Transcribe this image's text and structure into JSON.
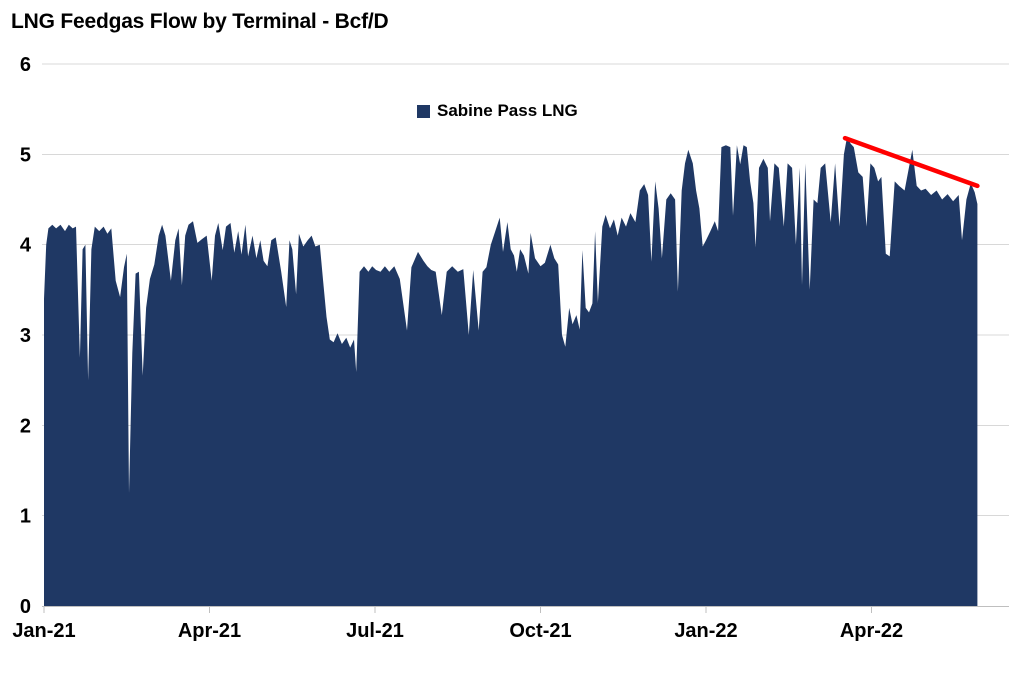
{
  "chart_data": {
    "type": "area",
    "title": "LNG Feedgas Flow by Terminal - Bcf/D",
    "value_unit": "Bcf/D",
    "x_unit": "months since Jan-2021",
    "x_ticks": [
      "Jan-21",
      "Apr-21",
      "Jul-21",
      "Oct-21",
      "Jan-22",
      "Apr-22"
    ],
    "x_tick_interval_months": 3,
    "xlim_months": [
      0,
      17.5
    ],
    "y_ticks": [
      0,
      1,
      2,
      3,
      4,
      5,
      6
    ],
    "ylim": [
      0,
      6
    ],
    "grid": true,
    "legend_position": "top-center",
    "colors": {
      "grid": "#d8d8d8",
      "axis": "#bfbfbf",
      "text": "#000000",
      "background": "#ffffff"
    },
    "series": [
      {
        "name": "Sabine Pass LNG",
        "color": "#1F3864",
        "points": [
          [
            0.0,
            3.4
          ],
          [
            0.04,
            4.0
          ],
          [
            0.08,
            4.18
          ],
          [
            0.15,
            4.22
          ],
          [
            0.22,
            4.18
          ],
          [
            0.3,
            4.22
          ],
          [
            0.38,
            4.15
          ],
          [
            0.45,
            4.22
          ],
          [
            0.52,
            4.18
          ],
          [
            0.58,
            4.2
          ],
          [
            0.65,
            2.75
          ],
          [
            0.7,
            3.95
          ],
          [
            0.75,
            4.0
          ],
          [
            0.8,
            2.5
          ],
          [
            0.86,
            3.95
          ],
          [
            0.92,
            4.2
          ],
          [
            1.0,
            4.15
          ],
          [
            1.08,
            4.2
          ],
          [
            1.15,
            4.12
          ],
          [
            1.22,
            4.18
          ],
          [
            1.3,
            3.6
          ],
          [
            1.38,
            3.42
          ],
          [
            1.45,
            3.75
          ],
          [
            1.5,
            3.9
          ],
          [
            1.54,
            1.25
          ],
          [
            1.6,
            2.8
          ],
          [
            1.66,
            3.68
          ],
          [
            1.72,
            3.7
          ],
          [
            1.79,
            2.55
          ],
          [
            1.85,
            3.3
          ],
          [
            1.92,
            3.62
          ],
          [
            2.0,
            3.78
          ],
          [
            2.08,
            4.1
          ],
          [
            2.14,
            4.22
          ],
          [
            2.2,
            4.1
          ],
          [
            2.3,
            3.6
          ],
          [
            2.38,
            4.05
          ],
          [
            2.44,
            4.18
          ],
          [
            2.5,
            3.55
          ],
          [
            2.56,
            4.1
          ],
          [
            2.62,
            4.22
          ],
          [
            2.7,
            4.26
          ],
          [
            2.78,
            4.02
          ],
          [
            2.86,
            4.06
          ],
          [
            2.95,
            4.1
          ],
          [
            3.04,
            3.6
          ],
          [
            3.1,
            4.1
          ],
          [
            3.16,
            4.24
          ],
          [
            3.24,
            3.94
          ],
          [
            3.3,
            4.2
          ],
          [
            3.38,
            4.24
          ],
          [
            3.45,
            3.91
          ],
          [
            3.52,
            4.15
          ],
          [
            3.58,
            3.89
          ],
          [
            3.65,
            4.22
          ],
          [
            3.7,
            3.87
          ],
          [
            3.78,
            4.1
          ],
          [
            3.85,
            3.85
          ],
          [
            3.92,
            4.05
          ],
          [
            3.98,
            3.82
          ],
          [
            4.05,
            3.76
          ],
          [
            4.12,
            4.05
          ],
          [
            4.2,
            4.08
          ],
          [
            4.3,
            3.7
          ],
          [
            4.39,
            3.31
          ],
          [
            4.45,
            4.05
          ],
          [
            4.5,
            3.95
          ],
          [
            4.57,
            3.45
          ],
          [
            4.62,
            4.12
          ],
          [
            4.7,
            3.98
          ],
          [
            4.78,
            4.05
          ],
          [
            4.85,
            4.1
          ],
          [
            4.92,
            3.98
          ],
          [
            5.0,
            4.0
          ],
          [
            5.06,
            3.6
          ],
          [
            5.12,
            3.2
          ],
          [
            5.18,
            2.95
          ],
          [
            5.25,
            2.92
          ],
          [
            5.32,
            3.02
          ],
          [
            5.4,
            2.9
          ],
          [
            5.48,
            2.97
          ],
          [
            5.55,
            2.86
          ],
          [
            5.62,
            2.95
          ],
          [
            5.66,
            2.59
          ],
          [
            5.72,
            3.7
          ],
          [
            5.8,
            3.76
          ],
          [
            5.88,
            3.7
          ],
          [
            5.95,
            3.76
          ],
          [
            6.02,
            3.72
          ],
          [
            6.1,
            3.7
          ],
          [
            6.18,
            3.76
          ],
          [
            6.26,
            3.7
          ],
          [
            6.35,
            3.76
          ],
          [
            6.45,
            3.62
          ],
          [
            6.58,
            3.05
          ],
          [
            6.66,
            3.75
          ],
          [
            6.78,
            3.92
          ],
          [
            6.88,
            3.82
          ],
          [
            6.95,
            3.76
          ],
          [
            7.02,
            3.72
          ],
          [
            7.1,
            3.7
          ],
          [
            7.21,
            3.22
          ],
          [
            7.3,
            3.7
          ],
          [
            7.4,
            3.76
          ],
          [
            7.5,
            3.7
          ],
          [
            7.6,
            3.73
          ],
          [
            7.7,
            3.0
          ],
          [
            7.78,
            3.72
          ],
          [
            7.88,
            3.05
          ],
          [
            7.95,
            3.7
          ],
          [
            8.02,
            3.75
          ],
          [
            8.1,
            4.0
          ],
          [
            8.18,
            4.15
          ],
          [
            8.26,
            4.3
          ],
          [
            8.32,
            3.92
          ],
          [
            8.4,
            4.25
          ],
          [
            8.46,
            3.95
          ],
          [
            8.52,
            3.88
          ],
          [
            8.57,
            3.7
          ],
          [
            8.63,
            3.95
          ],
          [
            8.7,
            3.88
          ],
          [
            8.78,
            3.68
          ],
          [
            8.82,
            4.13
          ],
          [
            8.9,
            3.85
          ],
          [
            9.0,
            3.76
          ],
          [
            9.08,
            3.8
          ],
          [
            9.18,
            4.0
          ],
          [
            9.25,
            3.85
          ],
          [
            9.32,
            3.78
          ],
          [
            9.39,
            3.0
          ],
          [
            9.45,
            2.87
          ],
          [
            9.52,
            3.3
          ],
          [
            9.58,
            3.12
          ],
          [
            9.65,
            3.22
          ],
          [
            9.71,
            3.06
          ],
          [
            9.76,
            3.94
          ],
          [
            9.82,
            3.3
          ],
          [
            9.88,
            3.25
          ],
          [
            9.94,
            3.35
          ],
          [
            9.99,
            4.15
          ],
          [
            10.04,
            3.36
          ],
          [
            10.12,
            4.2
          ],
          [
            10.18,
            4.33
          ],
          [
            10.26,
            4.18
          ],
          [
            10.33,
            4.28
          ],
          [
            10.4,
            4.1
          ],
          [
            10.47,
            4.3
          ],
          [
            10.55,
            4.2
          ],
          [
            10.63,
            4.35
          ],
          [
            10.72,
            4.25
          ],
          [
            10.8,
            4.6
          ],
          [
            10.88,
            4.67
          ],
          [
            10.95,
            4.55
          ],
          [
            11.01,
            3.81
          ],
          [
            11.08,
            4.7
          ],
          [
            11.14,
            4.4
          ],
          [
            11.2,
            3.85
          ],
          [
            11.28,
            4.5
          ],
          [
            11.36,
            4.57
          ],
          [
            11.44,
            4.5
          ],
          [
            11.49,
            3.48
          ],
          [
            11.56,
            4.6
          ],
          [
            11.62,
            4.9
          ],
          [
            11.68,
            5.05
          ],
          [
            11.76,
            4.9
          ],
          [
            11.82,
            4.6
          ],
          [
            11.88,
            4.4
          ],
          [
            11.94,
            3.98
          ],
          [
            12.0,
            4.05
          ],
          [
            12.08,
            4.15
          ],
          [
            12.16,
            4.26
          ],
          [
            12.22,
            4.15
          ],
          [
            12.28,
            5.08
          ],
          [
            12.36,
            5.1
          ],
          [
            12.44,
            5.08
          ],
          [
            12.49,
            4.32
          ],
          [
            12.56,
            5.1
          ],
          [
            12.62,
            4.89
          ],
          [
            12.68,
            5.1
          ],
          [
            12.74,
            5.08
          ],
          [
            12.8,
            4.7
          ],
          [
            12.86,
            4.46
          ],
          [
            12.9,
            3.97
          ],
          [
            12.96,
            4.85
          ],
          [
            13.04,
            4.95
          ],
          [
            13.12,
            4.85
          ],
          [
            13.16,
            4.26
          ],
          [
            13.24,
            4.9
          ],
          [
            13.32,
            4.85
          ],
          [
            13.41,
            4.2
          ],
          [
            13.48,
            4.9
          ],
          [
            13.56,
            4.85
          ],
          [
            13.63,
            4.0
          ],
          [
            13.7,
            4.85
          ],
          [
            13.74,
            3.55
          ],
          [
            13.8,
            4.9
          ],
          [
            13.88,
            3.5
          ],
          [
            13.95,
            4.5
          ],
          [
            14.02,
            4.46
          ],
          [
            14.08,
            4.85
          ],
          [
            14.16,
            4.9
          ],
          [
            14.26,
            4.25
          ],
          [
            14.34,
            4.9
          ],
          [
            14.42,
            4.2
          ],
          [
            14.5,
            5.0
          ],
          [
            14.56,
            5.2
          ],
          [
            14.62,
            5.12
          ],
          [
            14.68,
            5.08
          ],
          [
            14.76,
            4.8
          ],
          [
            14.84,
            4.75
          ],
          [
            14.91,
            4.2
          ],
          [
            14.98,
            4.9
          ],
          [
            15.05,
            4.85
          ],
          [
            15.12,
            4.7
          ],
          [
            15.18,
            4.75
          ],
          [
            15.26,
            3.9
          ],
          [
            15.33,
            3.87
          ],
          [
            15.42,
            4.7
          ],
          [
            15.5,
            4.65
          ],
          [
            15.6,
            4.6
          ],
          [
            15.74,
            5.05
          ],
          [
            15.82,
            4.65
          ],
          [
            15.9,
            4.6
          ],
          [
            15.98,
            4.62
          ],
          [
            16.08,
            4.55
          ],
          [
            16.18,
            4.6
          ],
          [
            16.28,
            4.5
          ],
          [
            16.38,
            4.56
          ],
          [
            16.48,
            4.48
          ],
          [
            16.58,
            4.55
          ],
          [
            16.64,
            4.05
          ],
          [
            16.72,
            4.5
          ],
          [
            16.8,
            4.68
          ],
          [
            16.87,
            4.58
          ],
          [
            16.92,
            4.45
          ]
        ]
      }
    ],
    "trendline": {
      "color": "#FF0000",
      "x1_months": 14.52,
      "y1": 5.18,
      "x2_months": 16.92,
      "y2": 4.65
    }
  }
}
